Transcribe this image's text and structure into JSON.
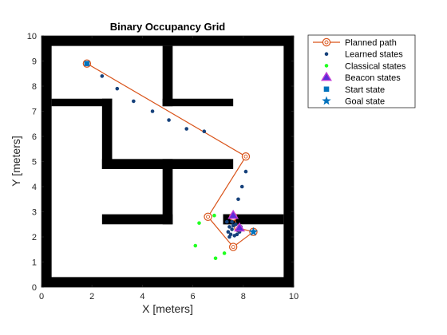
{
  "chart_data": {
    "type": "scatter",
    "title": "Binary Occupancy Grid",
    "xlabel": "X [meters]",
    "ylabel": "Y [meters]",
    "xlim": [
      0,
      10
    ],
    "ylim": [
      0,
      10
    ],
    "xticks": [
      "0",
      "2",
      "4",
      "6",
      "8",
      "10"
    ],
    "yticks": [
      "0",
      "1",
      "2",
      "3",
      "4",
      "5",
      "6",
      "7",
      "8",
      "9",
      "10"
    ],
    "grid": false,
    "legend_position": "outside-top-right",
    "occupancy_walls": [
      {
        "x1": 0.0,
        "y1": 9.6,
        "x2": 10.0,
        "y2": 10.0
      },
      {
        "x1": 0.0,
        "y1": 0.0,
        "x2": 10.0,
        "y2": 0.4
      },
      {
        "x1": 0.0,
        "y1": 0.0,
        "x2": 0.4,
        "y2": 10.0
      },
      {
        "x1": 9.6,
        "y1": 0.0,
        "x2": 10.0,
        "y2": 10.0
      },
      {
        "x1": 0.4,
        "y1": 7.2,
        "x2": 2.8,
        "y2": 7.5
      },
      {
        "x1": 2.4,
        "y1": 4.7,
        "x2": 2.8,
        "y2": 7.5
      },
      {
        "x1": 2.4,
        "y1": 4.7,
        "x2": 7.6,
        "y2": 5.1
      },
      {
        "x1": 4.8,
        "y1": 7.2,
        "x2": 5.2,
        "y2": 9.6
      },
      {
        "x1": 4.8,
        "y1": 7.2,
        "x2": 7.6,
        "y2": 7.5
      },
      {
        "x1": 4.8,
        "y1": 2.5,
        "x2": 5.2,
        "y2": 5.1
      },
      {
        "x1": 2.4,
        "y1": 2.5,
        "x2": 5.2,
        "y2": 2.9
      },
      {
        "x1": 7.2,
        "y1": 2.5,
        "x2": 9.6,
        "y2": 2.9
      },
      {
        "x1": 7.2,
        "y1": 2.5,
        "x2": 7.6,
        "y2": 2.9
      }
    ],
    "series": [
      {
        "name": "Planned path",
        "color": "#d95319",
        "marker": "open-circle",
        "x": [
          1.8,
          8.1,
          6.6,
          7.6,
          8.4,
          7.8,
          7.6
        ],
        "y": [
          8.9,
          5.2,
          2.8,
          1.6,
          2.2,
          2.35,
          2.8
        ]
      },
      {
        "name": "Learned states",
        "color": "#16417b",
        "marker": "dot",
        "x": [
          2.4,
          3.0,
          3.65,
          4.4,
          5.05,
          5.75,
          6.45,
          8.1,
          7.95,
          7.8,
          7.6,
          7.55,
          7.45,
          7.4,
          7.5,
          7.65,
          7.75,
          7.85,
          7.45,
          7.55,
          7.7,
          7.9,
          7.35,
          7.6,
          7.8
        ],
        "y": [
          8.4,
          7.9,
          7.4,
          7.0,
          6.65,
          6.3,
          6.2,
          4.6,
          4.0,
          3.5,
          2.9,
          2.6,
          2.4,
          2.2,
          2.1,
          2.05,
          2.1,
          2.2,
          2.0,
          2.3,
          2.5,
          2.4,
          2.6,
          2.45,
          2.25
        ]
      },
      {
        "name": "Classical states",
        "color": "#22ff22",
        "marker": "dot",
        "x": [
          6.85,
          6.25,
          6.1,
          6.9,
          7.25
        ],
        "y": [
          2.85,
          2.55,
          1.65,
          1.15,
          1.35
        ]
      },
      {
        "name": "Beacon states",
        "color": "#7e2f8e",
        "fill": "#5b2dd6",
        "marker": "triangle",
        "x": [
          7.6,
          7.85
        ],
        "y": [
          2.85,
          2.35
        ]
      },
      {
        "name": "Start state",
        "color": "#0072bd",
        "marker": "square",
        "x": [
          1.8
        ],
        "y": [
          8.9
        ]
      },
      {
        "name": "Goal state",
        "color": "#0072bd",
        "marker": "star",
        "x": [
          8.4
        ],
        "y": [
          2.2
        ]
      }
    ]
  }
}
